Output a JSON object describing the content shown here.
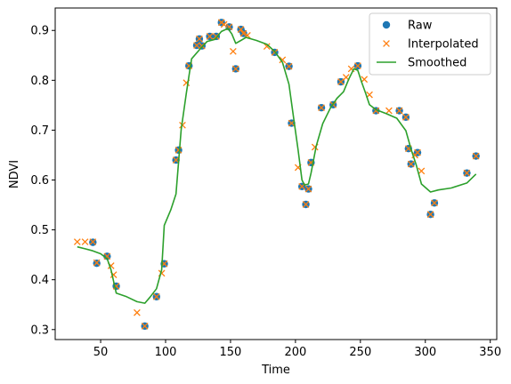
{
  "chart_data": {
    "type": "scatter",
    "xlabel": "Time",
    "ylabel": "NDVI",
    "xlim": [
      15,
      355
    ],
    "ylim": [
      0.28,
      0.945
    ],
    "xticks": [
      50,
      100,
      150,
      200,
      250,
      300,
      350
    ],
    "yticks": [
      0.3,
      0.4,
      0.5,
      0.6,
      0.7,
      0.8,
      0.9
    ],
    "grid": false,
    "legend_position": "top-right",
    "series": [
      {
        "name": "Raw",
        "style": "marker-circle",
        "color": "#1f77b4",
        "points": [
          [
            44,
            0.475
          ],
          [
            47,
            0.433
          ],
          [
            55,
            0.447
          ],
          [
            62,
            0.387
          ],
          [
            84,
            0.307
          ],
          [
            93,
            0.366
          ],
          [
            99,
            0.432
          ],
          [
            108,
            0.64
          ],
          [
            110,
            0.66
          ],
          [
            118,
            0.829
          ],
          [
            124,
            0.87
          ],
          [
            126,
            0.883
          ],
          [
            128,
            0.869
          ],
          [
            134,
            0.888
          ],
          [
            139,
            0.888
          ],
          [
            143,
            0.916
          ],
          [
            149,
            0.907
          ],
          [
            154,
            0.823
          ],
          [
            158,
            0.902
          ],
          [
            160,
            0.894
          ],
          [
            184,
            0.856
          ],
          [
            195,
            0.828
          ],
          [
            197,
            0.714
          ],
          [
            205,
            0.587
          ],
          [
            208,
            0.551
          ],
          [
            210,
            0.582
          ],
          [
            212,
            0.635
          ],
          [
            220,
            0.745
          ],
          [
            229,
            0.751
          ],
          [
            235,
            0.797
          ],
          [
            248,
            0.829
          ],
          [
            262,
            0.739
          ],
          [
            280,
            0.739
          ],
          [
            285,
            0.726
          ],
          [
            287,
            0.663
          ],
          [
            289,
            0.632
          ],
          [
            294,
            0.655
          ],
          [
            304,
            0.531
          ],
          [
            307,
            0.554
          ],
          [
            332,
            0.614
          ],
          [
            339,
            0.648
          ]
        ]
      },
      {
        "name": "Interpolated",
        "style": "marker-x",
        "color": "#ff7f0e",
        "points": [
          [
            32,
            0.476
          ],
          [
            38,
            0.476
          ],
          [
            44,
            0.476
          ],
          [
            47,
            0.434
          ],
          [
            55,
            0.447
          ],
          [
            58,
            0.428
          ],
          [
            60,
            0.41
          ],
          [
            62,
            0.387
          ],
          [
            78,
            0.334
          ],
          [
            84,
            0.307
          ],
          [
            93,
            0.366
          ],
          [
            97,
            0.413
          ],
          [
            99,
            0.432
          ],
          [
            108,
            0.64
          ],
          [
            110,
            0.66
          ],
          [
            113,
            0.71
          ],
          [
            116,
            0.795
          ],
          [
            118,
            0.829
          ],
          [
            124,
            0.87
          ],
          [
            126,
            0.883
          ],
          [
            128,
            0.869
          ],
          [
            134,
            0.888
          ],
          [
            139,
            0.888
          ],
          [
            143,
            0.916
          ],
          [
            145,
            0.912
          ],
          [
            149,
            0.907
          ],
          [
            152,
            0.858
          ],
          [
            154,
            0.823
          ],
          [
            158,
            0.902
          ],
          [
            160,
            0.894
          ],
          [
            163,
            0.89
          ],
          [
            178,
            0.868
          ],
          [
            184,
            0.856
          ],
          [
            190,
            0.841
          ],
          [
            195,
            0.828
          ],
          [
            197,
            0.714
          ],
          [
            202,
            0.625
          ],
          [
            205,
            0.587
          ],
          [
            208,
            0.551
          ],
          [
            210,
            0.582
          ],
          [
            212,
            0.635
          ],
          [
            215,
            0.666
          ],
          [
            220,
            0.745
          ],
          [
            229,
            0.751
          ],
          [
            235,
            0.797
          ],
          [
            239,
            0.806
          ],
          [
            243,
            0.823
          ],
          [
            248,
            0.829
          ],
          [
            253,
            0.802
          ],
          [
            257,
            0.771
          ],
          [
            262,
            0.739
          ],
          [
            272,
            0.739
          ],
          [
            280,
            0.739
          ],
          [
            285,
            0.726
          ],
          [
            287,
            0.663
          ],
          [
            289,
            0.632
          ],
          [
            292,
            0.65
          ],
          [
            294,
            0.655
          ],
          [
            297,
            0.618
          ],
          [
            304,
            0.531
          ],
          [
            307,
            0.554
          ],
          [
            332,
            0.614
          ],
          [
            339,
            0.648
          ]
        ]
      },
      {
        "name": "Smoothed",
        "style": "line",
        "color": "#2ca02c",
        "points": [
          [
            32,
            0.466
          ],
          [
            38,
            0.462
          ],
          [
            44,
            0.458
          ],
          [
            50,
            0.452
          ],
          [
            55,
            0.442
          ],
          [
            58,
            0.42
          ],
          [
            62,
            0.373
          ],
          [
            70,
            0.366
          ],
          [
            78,
            0.356
          ],
          [
            84,
            0.353
          ],
          [
            88,
            0.365
          ],
          [
            93,
            0.382
          ],
          [
            97,
            0.42
          ],
          [
            99,
            0.509
          ],
          [
            104,
            0.54
          ],
          [
            108,
            0.572
          ],
          [
            112,
            0.701
          ],
          [
            116,
            0.774
          ],
          [
            120,
            0.843
          ],
          [
            126,
            0.861
          ],
          [
            132,
            0.878
          ],
          [
            138,
            0.882
          ],
          [
            143,
            0.898
          ],
          [
            148,
            0.904
          ],
          [
            151,
            0.893
          ],
          [
            154,
            0.874
          ],
          [
            158,
            0.88
          ],
          [
            162,
            0.886
          ],
          [
            170,
            0.88
          ],
          [
            178,
            0.872
          ],
          [
            184,
            0.858
          ],
          [
            190,
            0.836
          ],
          [
            195,
            0.792
          ],
          [
            199,
            0.717
          ],
          [
            202,
            0.661
          ],
          [
            205,
            0.6
          ],
          [
            207,
            0.59
          ],
          [
            210,
            0.592
          ],
          [
            212,
            0.614
          ],
          [
            216,
            0.668
          ],
          [
            221,
            0.713
          ],
          [
            227,
            0.745
          ],
          [
            232,
            0.764
          ],
          [
            237,
            0.777
          ],
          [
            241,
            0.802
          ],
          [
            245,
            0.823
          ],
          [
            248,
            0.82
          ],
          [
            251,
            0.796
          ],
          [
            254,
            0.774
          ],
          [
            257,
            0.751
          ],
          [
            262,
            0.741
          ],
          [
            270,
            0.733
          ],
          [
            278,
            0.724
          ],
          [
            285,
            0.699
          ],
          [
            289,
            0.662
          ],
          [
            293,
            0.63
          ],
          [
            297,
            0.592
          ],
          [
            304,
            0.576
          ],
          [
            310,
            0.58
          ],
          [
            320,
            0.584
          ],
          [
            332,
            0.594
          ],
          [
            339,
            0.612
          ]
        ]
      }
    ]
  }
}
